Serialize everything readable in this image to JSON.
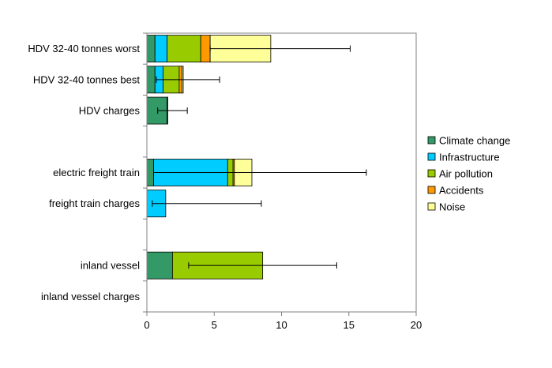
{
  "chart_data": {
    "type": "bar",
    "orientation": "horizontal",
    "stacked": true,
    "title": "",
    "xlabel": "",
    "ylabel": "",
    "xlim": [
      0,
      20
    ],
    "xticks": [
      "0",
      "5",
      "10",
      "15",
      "20"
    ],
    "grid": false,
    "legend_position": "right",
    "categories": [
      "HDV 32-40 tonnes worst",
      "HDV 32-40 tonnes best",
      "HDV charges",
      "",
      "electric freight train",
      "freight train charges",
      "",
      "inland vessel",
      "inland vessel charges"
    ],
    "series": [
      {
        "name": "Climate change",
        "color": "#339966",
        "values": [
          0.6,
          0.6,
          1.5,
          0,
          0.5,
          0,
          0,
          1.9,
          0
        ]
      },
      {
        "name": "Infrastructure",
        "color": "#00CCFF",
        "values": [
          0.9,
          0.6,
          0.05,
          0,
          5.5,
          1.4,
          0,
          0,
          0
        ]
      },
      {
        "name": "Air pollution",
        "color": "#99CC00",
        "values": [
          2.5,
          1.2,
          0,
          0,
          0.4,
          0,
          0,
          6.7,
          0
        ]
      },
      {
        "name": "Accidents",
        "color": "#FF9900",
        "values": [
          0.7,
          0.2,
          0,
          0,
          0.1,
          0,
          0,
          0,
          0
        ]
      },
      {
        "name": "Noise",
        "color": "#FFFF99",
        "values": [
          4.5,
          0.1,
          0,
          0,
          1.3,
          0,
          0,
          0,
          0
        ]
      }
    ],
    "error_bars": [
      {
        "category": "HDV 32-40 tonnes worst",
        "low": 4.7,
        "high": 15.1
      },
      {
        "category": "HDV 32-40 tonnes best",
        "low": 0.7,
        "high": 5.4
      },
      {
        "category": "HDV charges",
        "low": 0.8,
        "high": 3.0
      },
      {
        "category": "electric freight train",
        "low": 0.5,
        "high": 16.3
      },
      {
        "category": "freight train charges",
        "low": 0.4,
        "high": 8.5
      },
      {
        "category": "inland vessel",
        "low": 3.1,
        "high": 14.1
      }
    ]
  }
}
